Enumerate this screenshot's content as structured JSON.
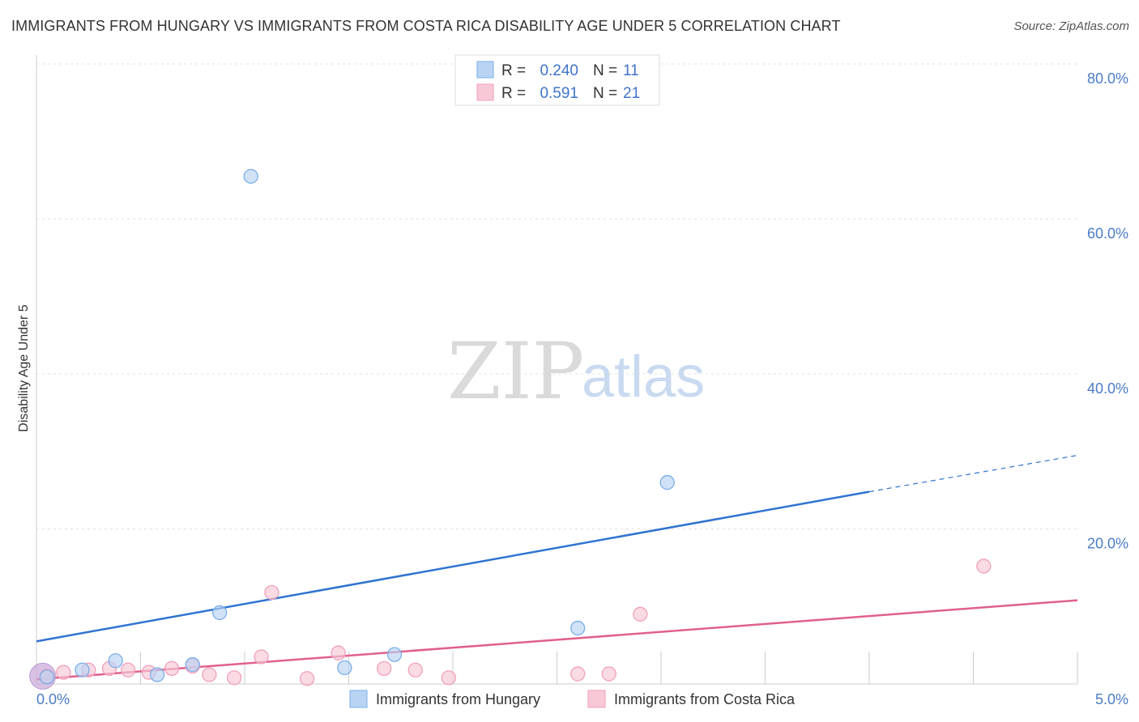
{
  "title": "IMMIGRANTS FROM HUNGARY VS IMMIGRANTS FROM COSTA RICA DISABILITY AGE UNDER 5 CORRELATION CHART",
  "source": "Source: ZipAtlas.com",
  "watermark": {
    "zip": "ZIP",
    "atlas": "atlas"
  },
  "chart_data": {
    "type": "scatter",
    "title": "IMMIGRANTS FROM HUNGARY VS IMMIGRANTS FROM COSTA RICA DISABILITY AGE UNDER 5 CORRELATION CHART",
    "xlabel": "",
    "ylabel": "Disability Age Under 5",
    "xlim": [
      0,
      5
    ],
    "ylim": [
      0,
      80
    ],
    "x_ticks": [
      {
        "value": 0,
        "label": "0.0%"
      },
      {
        "value": 5,
        "label": "5.0%"
      }
    ],
    "y_ticks": [
      {
        "value": 20,
        "label": "20.0%"
      },
      {
        "value": 40,
        "label": "40.0%"
      },
      {
        "value": 60,
        "label": "60.0%"
      },
      {
        "value": 80,
        "label": "80.0%"
      }
    ],
    "legend": [
      {
        "r_label": "R =",
        "r_value": "0.240",
        "n_label": "N =",
        "n_value": "11"
      },
      {
        "r_label": "R =",
        "r_value": "0.591",
        "n_label": "N =",
        "n_value": "21"
      }
    ],
    "series": [
      {
        "name": "Immigrants from Hungary",
        "color": "#7aaee8",
        "fill": "#b9d3f3",
        "line_color": "#2f74d0",
        "points": [
          [
            0.05,
            0.9
          ],
          [
            0.22,
            1.8
          ],
          [
            0.38,
            3.0
          ],
          [
            0.58,
            1.2
          ],
          [
            0.75,
            2.5
          ],
          [
            0.88,
            9.2
          ],
          [
            1.03,
            65.5
          ],
          [
            1.48,
            2.1
          ],
          [
            1.72,
            3.8
          ],
          [
            2.6,
            7.2
          ],
          [
            3.03,
            26.0
          ]
        ],
        "trend": {
          "x0": 0,
          "y0": 5.5,
          "x1": 4.0,
          "y1": 24.8,
          "dash_x1": 5.0,
          "dash_y1": 29.5
        }
      },
      {
        "name": "Immigrants from Costa Rica",
        "color": "#f0a0b8",
        "fill": "#f8c8d6",
        "line_color": "#e0608c",
        "points": [
          [
            0.05,
            1.0
          ],
          [
            0.13,
            1.5
          ],
          [
            0.25,
            1.8
          ],
          [
            0.35,
            2.0
          ],
          [
            0.44,
            1.8
          ],
          [
            0.54,
            1.5
          ],
          [
            0.65,
            2.0
          ],
          [
            0.75,
            2.3
          ],
          [
            0.83,
            1.2
          ],
          [
            0.95,
            0.8
          ],
          [
            1.08,
            3.5
          ],
          [
            1.13,
            11.8
          ],
          [
            1.3,
            0.7
          ],
          [
            1.45,
            4.0
          ],
          [
            1.67,
            2.0
          ],
          [
            1.82,
            1.8
          ],
          [
            1.98,
            0.8
          ],
          [
            2.6,
            1.3
          ],
          [
            2.75,
            1.3
          ],
          [
            2.9,
            9.0
          ],
          [
            4.55,
            15.2
          ]
        ],
        "trend": {
          "x0": 0,
          "y0": 0.6,
          "x1": 5.0,
          "y1": 10.8
        }
      }
    ]
  }
}
